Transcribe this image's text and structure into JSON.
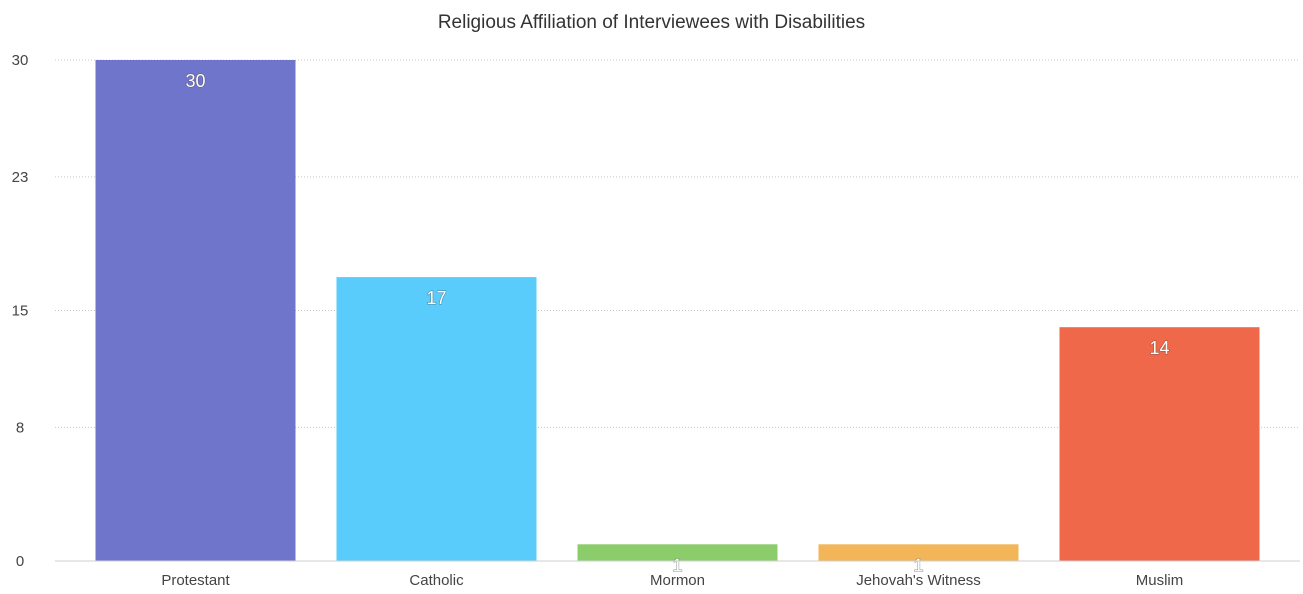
{
  "chart_data": {
    "type": "bar",
    "title": "Religious Affiliation of Interviewees with Disabilities",
    "xlabel": "",
    "ylabel": "",
    "categories": [
      "Protestant",
      "Catholic",
      "Mormon",
      "Jehovah's Witness",
      "Muslim"
    ],
    "values": [
      30,
      17,
      1,
      1,
      14
    ],
    "data_labels": [
      "30",
      "17",
      "1",
      "1",
      "14"
    ],
    "colors": [
      "#6F75CB",
      "#5ACCFB",
      "#8BCC6B",
      "#F2B659",
      "#EE6849"
    ],
    "ylim": [
      0,
      30
    ],
    "yticks": [
      0,
      8,
      15,
      23,
      30
    ],
    "ytick_labels": [
      "0",
      "8",
      "15",
      "23",
      "30"
    ],
    "grid": true,
    "legend": "none"
  }
}
